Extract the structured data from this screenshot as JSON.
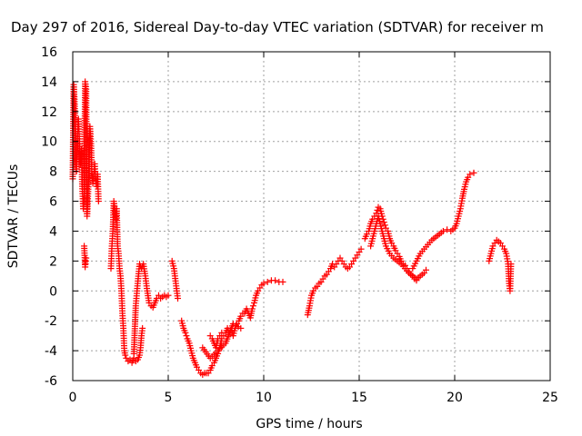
{
  "chart_data": {
    "type": "scatter",
    "title": "Day 297 of 2016, Sidereal Day-to-day VTEC variation (SDTVAR) for receiver m",
    "xlabel": "GPS time / hours",
    "ylabel": "SDTVAR / TECUs",
    "xlim": [
      0,
      25
    ],
    "ylim": [
      -6,
      16
    ],
    "x_ticks": [
      "0",
      "5",
      "10",
      "15",
      "20",
      "25"
    ],
    "y_ticks": [
      "-6",
      "-4",
      "-2",
      "0",
      "2",
      "4",
      "6",
      "8",
      "10",
      "12",
      "14",
      "16"
    ],
    "grid": true,
    "marker": "plus",
    "color": "#ff0000",
    "series": [
      {
        "segments": [
          [
            [
              0.0,
              7.5
            ],
            [
              0.05,
              13.8
            ],
            [
              0.1,
              12.5
            ],
            [
              0.15,
              9.0
            ],
            [
              0.2,
              8.0
            ],
            [
              0.25,
              10.5
            ],
            [
              0.3,
              11.5
            ],
            [
              0.35,
              10.0
            ],
            [
              0.4,
              8.5
            ],
            [
              0.45,
              9.5
            ],
            [
              0.5,
              7.0
            ],
            [
              0.55,
              5.5
            ],
            [
              0.6,
              6.5
            ],
            [
              0.65,
              14.0
            ],
            [
              0.7,
              13.5
            ],
            [
              0.75,
              5.0
            ],
            [
              0.8,
              6.5
            ],
            [
              0.85,
              8.5
            ],
            [
              0.9,
              11.0
            ],
            [
              0.95,
              10.0
            ],
            [
              1.0,
              8.0
            ],
            [
              1.05,
              7.2
            ],
            [
              1.1,
              7.8
            ],
            [
              1.15,
              8.5
            ],
            [
              1.2,
              7.5
            ],
            [
              1.25,
              7.0
            ],
            [
              1.3,
              7.8
            ],
            [
              1.35,
              6.0
            ]
          ],
          [
            [
              0.6,
              3.0
            ],
            [
              0.65,
              1.6
            ],
            [
              0.7,
              2.2
            ]
          ],
          [
            [
              2.0,
              1.5
            ],
            [
              2.05,
              3.0
            ],
            [
              2.1,
              4.0
            ],
            [
              2.15,
              6.0
            ],
            [
              2.2,
              5.5
            ],
            [
              2.25,
              4.8
            ],
            [
              2.3,
              5.5
            ],
            [
              2.35,
              3.0
            ],
            [
              2.4,
              2.5
            ],
            [
              2.45,
              1.5
            ],
            [
              2.5,
              1.0
            ],
            [
              2.55,
              0.0
            ],
            [
              2.6,
              -1.5
            ],
            [
              2.65,
              -2.5
            ],
            [
              2.7,
              -4.0
            ],
            [
              2.75,
              -4.3
            ],
            [
              2.8,
              -4.5
            ],
            [
              2.9,
              -4.7
            ],
            [
              3.0,
              -4.6
            ],
            [
              3.1,
              -4.8
            ],
            [
              3.2,
              -4.5
            ],
            [
              3.3,
              -4.7
            ],
            [
              3.4,
              -4.6
            ],
            [
              3.5,
              -4.3
            ],
            [
              3.55,
              -3.8
            ],
            [
              3.6,
              -3.0
            ],
            [
              3.65,
              -2.5
            ]
          ],
          [
            [
              3.2,
              -4.2
            ],
            [
              3.3,
              -1.0
            ],
            [
              3.4,
              0.5
            ],
            [
              3.5,
              1.8
            ],
            [
              3.6,
              1.5
            ],
            [
              3.7,
              1.8
            ],
            [
              3.8,
              1.0
            ],
            [
              3.9,
              0.0
            ],
            [
              4.0,
              -0.8
            ],
            [
              4.1,
              -1.0
            ],
            [
              4.2,
              -1.1
            ],
            [
              4.3,
              -0.8
            ],
            [
              4.4,
              -0.5
            ],
            [
              4.5,
              -0.3
            ],
            [
              4.6,
              -0.5
            ],
            [
              4.7,
              -0.4
            ],
            [
              4.8,
              -0.3
            ],
            [
              4.9,
              -0.4
            ],
            [
              5.0,
              -0.3
            ]
          ],
          [
            [
              5.2,
              2.0
            ],
            [
              5.3,
              1.5
            ],
            [
              5.4,
              0.5
            ],
            [
              5.5,
              -0.5
            ]
          ],
          [
            [
              5.7,
              -2.0
            ],
            [
              5.8,
              -2.5
            ],
            [
              5.9,
              -2.8
            ],
            [
              6.0,
              -3.2
            ],
            [
              6.1,
              -3.5
            ],
            [
              6.2,
              -4.0
            ],
            [
              6.3,
              -4.5
            ],
            [
              6.4,
              -4.8
            ],
            [
              6.5,
              -5.1
            ],
            [
              6.6,
              -5.3
            ],
            [
              6.7,
              -5.5
            ],
            [
              6.8,
              -5.6
            ],
            [
              6.9,
              -5.5
            ],
            [
              7.0,
              -5.5
            ],
            [
              7.1,
              -5.5
            ],
            [
              7.2,
              -5.3
            ],
            [
              7.3,
              -5.0
            ],
            [
              7.4,
              -4.8
            ],
            [
              7.5,
              -4.5
            ],
            [
              7.6,
              -4.2
            ],
            [
              7.7,
              -3.8
            ],
            [
              7.8,
              -3.2
            ]
          ],
          [
            [
              7.2,
              -3.0
            ],
            [
              7.3,
              -3.2
            ],
            [
              7.4,
              -3.5
            ],
            [
              7.5,
              -3.8
            ],
            [
              7.6,
              -3.2
            ],
            [
              7.7,
              -3.0
            ],
            [
              7.8,
              -2.8
            ],
            [
              7.9,
              -3.0
            ],
            [
              8.0,
              -2.8
            ],
            [
              8.1,
              -2.5
            ],
            [
              8.2,
              -2.8
            ],
            [
              8.3,
              -2.5
            ],
            [
              8.4,
              -3.0
            ],
            [
              8.5,
              -2.5
            ],
            [
              8.6,
              -2.2
            ],
            [
              8.7,
              -2.0
            ],
            [
              8.8,
              -1.7
            ],
            [
              8.9,
              -1.5
            ],
            [
              9.0,
              -1.5
            ],
            [
              9.1,
              -1.2
            ],
            [
              9.2,
              -1.5
            ],
            [
              9.3,
              -1.8
            ],
            [
              9.4,
              -1.2
            ],
            [
              9.5,
              -0.8
            ],
            [
              9.6,
              -0.3
            ],
            [
              9.7,
              0.0
            ],
            [
              9.8,
              0.2
            ],
            [
              9.9,
              0.4
            ],
            [
              10.0,
              0.5
            ],
            [
              10.2,
              0.6
            ],
            [
              10.4,
              0.7
            ],
            [
              10.6,
              0.7
            ],
            [
              10.8,
              0.6
            ],
            [
              11.0,
              0.6
            ]
          ],
          [
            [
              6.8,
              -3.8
            ],
            [
              7.2,
              -4.5
            ],
            [
              7.6,
              -4.0
            ],
            [
              8.0,
              -3.5
            ],
            [
              8.4,
              -2.2
            ],
            [
              8.8,
              -2.5
            ]
          ],
          [
            [
              12.3,
              -1.6
            ],
            [
              12.4,
              -1.0
            ],
            [
              12.5,
              -0.3
            ],
            [
              12.6,
              0.0
            ],
            [
              12.7,
              0.2
            ],
            [
              12.8,
              0.3
            ],
            [
              12.9,
              0.5
            ],
            [
              13.0,
              0.6
            ],
            [
              13.1,
              0.8
            ],
            [
              13.2,
              1.0
            ],
            [
              13.3,
              1.1
            ],
            [
              13.4,
              1.3
            ],
            [
              13.5,
              1.5
            ],
            [
              13.6,
              1.8
            ],
            [
              13.7,
              1.6
            ],
            [
              13.8,
              1.8
            ],
            [
              13.9,
              2.0
            ],
            [
              14.0,
              2.2
            ],
            [
              14.1,
              2.0
            ],
            [
              14.2,
              1.8
            ],
            [
              14.3,
              1.6
            ],
            [
              14.4,
              1.5
            ],
            [
              14.5,
              1.6
            ],
            [
              14.6,
              1.8
            ],
            [
              14.7,
              2.0
            ],
            [
              14.8,
              2.2
            ],
            [
              14.9,
              2.4
            ],
            [
              15.0,
              2.6
            ],
            [
              15.1,
              2.8
            ]
          ],
          [
            [
              15.3,
              3.5
            ],
            [
              15.4,
              3.8
            ],
            [
              15.5,
              4.0
            ],
            [
              15.6,
              4.5
            ],
            [
              15.7,
              4.8
            ],
            [
              15.8,
              5.0
            ],
            [
              15.9,
              5.2
            ],
            [
              16.0,
              5.6
            ],
            [
              16.1,
              5.5
            ],
            [
              16.2,
              5.0
            ],
            [
              16.3,
              4.6
            ],
            [
              16.4,
              4.2
            ],
            [
              16.5,
              4.0
            ],
            [
              16.6,
              3.5
            ],
            [
              16.7,
              3.2
            ],
            [
              16.8,
              3.0
            ],
            [
              16.9,
              2.7
            ],
            [
              17.0,
              2.5
            ],
            [
              17.1,
              2.3
            ],
            [
              17.2,
              2.0
            ],
            [
              17.3,
              1.8
            ],
            [
              17.4,
              1.7
            ],
            [
              17.5,
              1.5
            ],
            [
              17.6,
              1.3
            ],
            [
              17.7,
              1.1
            ],
            [
              17.8,
              1.0
            ],
            [
              17.9,
              0.8
            ],
            [
              18.0,
              0.7
            ]
          ],
          [
            [
              15.6,
              3.0
            ],
            [
              15.8,
              4.0
            ],
            [
              16.0,
              5.0
            ],
            [
              16.2,
              4.0
            ],
            [
              16.4,
              3.0
            ],
            [
              16.6,
              2.5
            ],
            [
              16.8,
              2.2
            ],
            [
              17.0,
              2.0
            ],
            [
              17.2,
              1.8
            ],
            [
              17.4,
              1.5
            ],
            [
              17.6,
              1.2
            ],
            [
              17.8,
              1.0
            ],
            [
              18.0,
              0.8
            ],
            [
              18.2,
              1.0
            ],
            [
              18.4,
              1.2
            ],
            [
              18.5,
              1.4
            ]
          ],
          [
            [
              17.8,
              1.5
            ],
            [
              18.0,
              2.0
            ],
            [
              18.2,
              2.5
            ],
            [
              18.4,
              2.8
            ],
            [
              18.6,
              3.1
            ],
            [
              18.8,
              3.4
            ],
            [
              19.0,
              3.6
            ],
            [
              19.2,
              3.8
            ],
            [
              19.4,
              4.0
            ],
            [
              19.6,
              4.1
            ],
            [
              19.8,
              4.0
            ],
            [
              20.0,
              4.2
            ],
            [
              20.1,
              4.5
            ],
            [
              20.2,
              5.0
            ],
            [
              20.3,
              5.5
            ],
            [
              20.4,
              6.2
            ],
            [
              20.5,
              6.8
            ],
            [
              20.6,
              7.3
            ],
            [
              20.7,
              7.6
            ],
            [
              20.8,
              7.8
            ],
            [
              21.0,
              7.9
            ]
          ],
          [
            [
              21.8,
              2.0
            ],
            [
              21.9,
              2.5
            ],
            [
              22.0,
              3.0
            ],
            [
              22.1,
              3.2
            ],
            [
              22.2,
              3.4
            ],
            [
              22.3,
              3.3
            ],
            [
              22.4,
              3.2
            ],
            [
              22.5,
              3.0
            ],
            [
              22.6,
              2.8
            ],
            [
              22.7,
              2.5
            ],
            [
              22.8,
              1.8
            ],
            [
              22.85,
              0.5
            ],
            [
              22.9,
              0.0
            ],
            [
              22.95,
              1.8
            ]
          ]
        ]
      }
    ]
  }
}
